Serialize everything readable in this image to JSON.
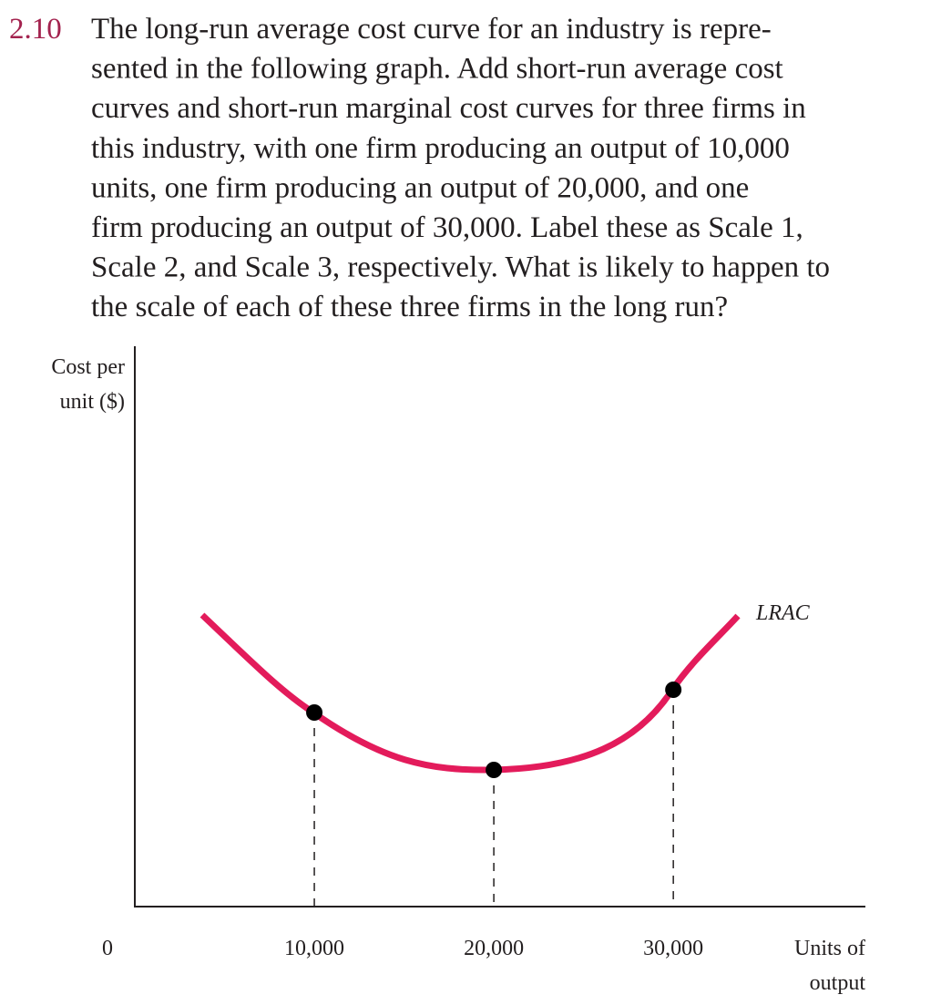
{
  "problem": {
    "number": "2.10",
    "lines": [
      "The long-run average cost curve for an industry is repre-",
      "sented in the following graph. Add short-run average cost",
      "curves and short-run marginal cost curves for three firms in",
      "this industry, with one firm producing an output of 10,000",
      "units, one firm producing an output of 20,000, and one",
      "firm producing an output of 30,000. Label these as Scale 1,",
      "Scale 2, and Scale 3, respectively. What is likely to happen to",
      "the scale of each of these three firms in the long run?"
    ]
  },
  "chart_data": {
    "type": "line",
    "y_label_lines": [
      "Cost per",
      "unit ($)"
    ],
    "x_label_lines": [
      "Units of",
      "output"
    ],
    "curve_label": "LRAC",
    "xlim": [
      0,
      40700
    ],
    "xticks": [
      0,
      {
        "value": 10000,
        "label": "10,000"
      },
      {
        "value": 20000,
        "label": "20,000"
      },
      {
        "value": 30000,
        "label": "30,000"
      }
    ]
  }
}
